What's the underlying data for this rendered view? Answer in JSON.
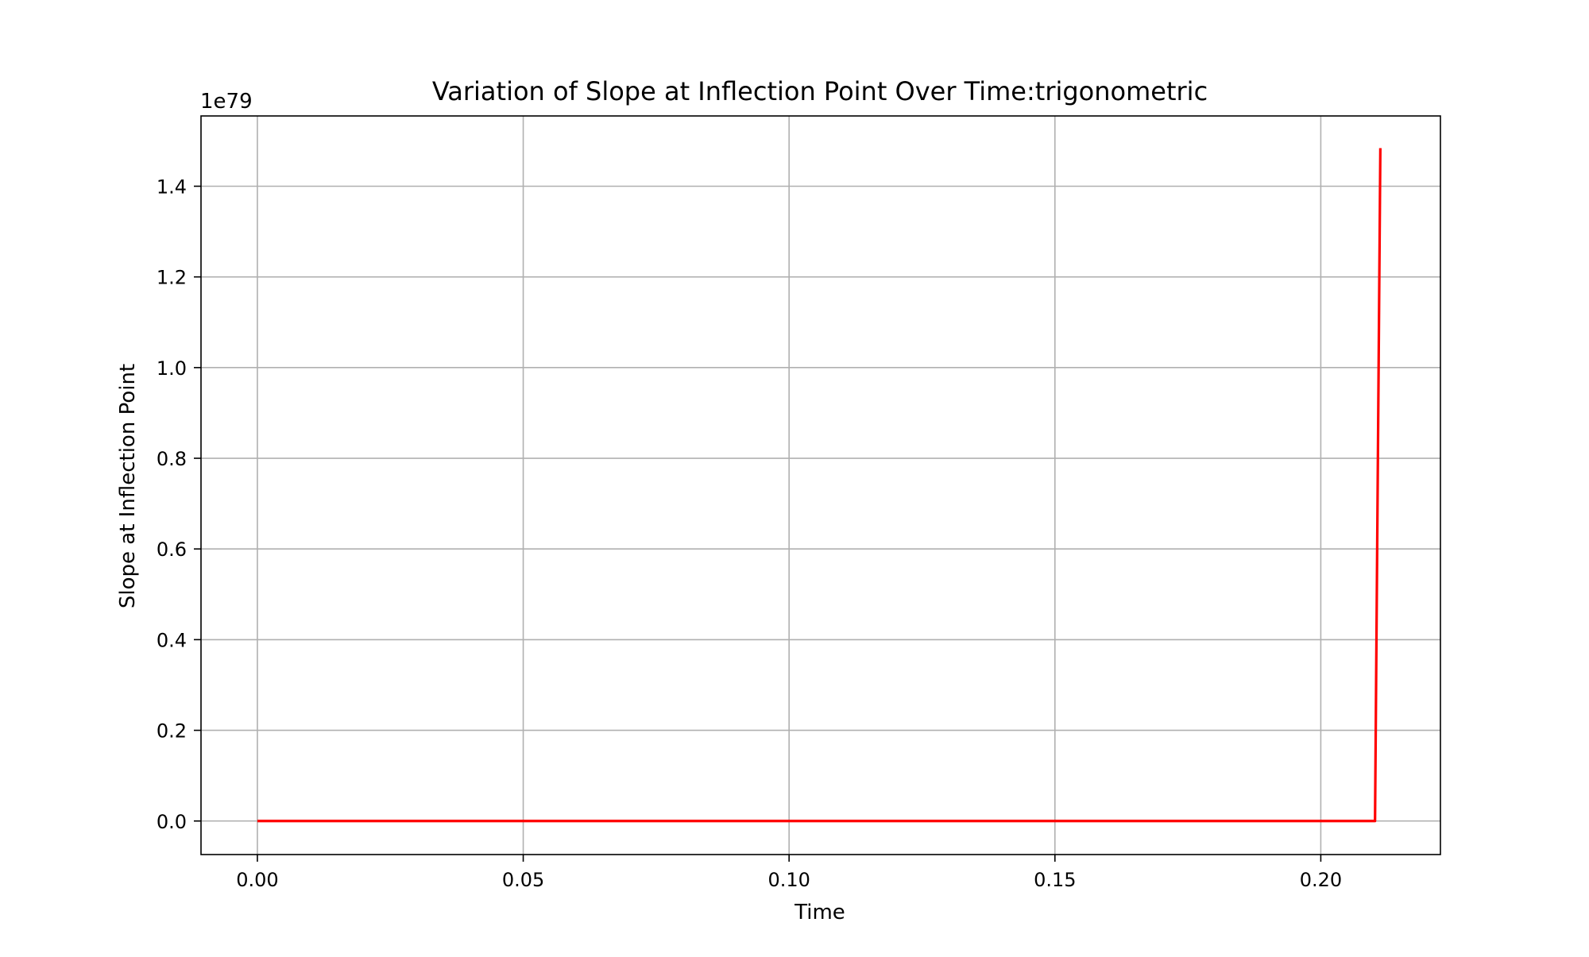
{
  "chart_data": {
    "type": "line",
    "title": "Variation of Slope at Inflection Point Over Time:trigonometric",
    "xlabel": "Time",
    "ylabel": "Slope at Inflection Point",
    "y_offset_label": "1e79",
    "xlim": [
      -0.0106,
      0.2225
    ],
    "ylim": [
      -0.074,
      1.555
    ],
    "x_ticks": [
      0.0,
      0.05,
      0.1,
      0.15,
      0.2
    ],
    "x_tick_labels": [
      "0.00",
      "0.05",
      "0.10",
      "0.15",
      "0.20"
    ],
    "y_ticks": [
      0.0,
      0.2,
      0.4,
      0.6,
      0.8,
      1.0,
      1.2,
      1.4
    ],
    "y_tick_labels": [
      "0.0",
      "0.2",
      "0.4",
      "0.6",
      "0.8",
      "1.0",
      "1.2",
      "1.4"
    ],
    "grid": true,
    "legend": "none",
    "series": [
      {
        "color": "#ff0000",
        "x": [
          0.0,
          0.05,
          0.1,
          0.15,
          0.2,
          0.2102,
          0.2112
        ],
        "y": [
          0.0,
          0.0,
          0.0,
          0.0,
          0.0,
          0.0,
          1.484
        ]
      }
    ]
  }
}
